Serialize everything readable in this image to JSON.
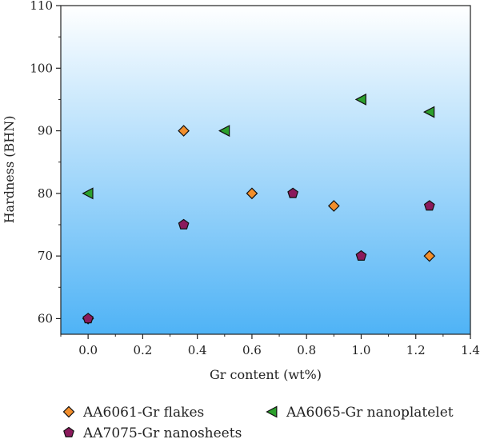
{
  "chart_data": {
    "type": "scatter",
    "xlabel": "Gr content (wt%)",
    "ylabel": "Hardness (BHN)",
    "xlim": [
      -0.1,
      1.4
    ],
    "ylim": [
      57.5,
      110
    ],
    "x_ticks": [
      0.0,
      0.2,
      0.4,
      0.6,
      0.8,
      1.0,
      1.2,
      1.4
    ],
    "x_tick_labels": [
      "0.0",
      "0.2",
      "0.4",
      "0.6",
      "0.8",
      "1.0",
      "1.2",
      "1.4"
    ],
    "y_ticks": [
      60,
      70,
      80,
      90,
      100,
      110
    ],
    "y_tick_labels": [
      "60",
      "70",
      "80",
      "90",
      "100",
      "110"
    ],
    "background": "vertical gradient white to light blue",
    "legend_position": "bottom",
    "series": [
      {
        "name": "AA6061-Gr flakes",
        "marker": "diamond",
        "color": "#f28e2b",
        "x": [
          0.0,
          0.35,
          0.6,
          0.9,
          1.25
        ],
        "y": [
          60,
          90,
          80,
          78,
          70
        ]
      },
      {
        "name": "AA6065-Gr nanoplatelet",
        "marker": "triangle-left",
        "color": "#2ca02c",
        "x": [
          0.0,
          0.5,
          1.0,
          1.25
        ],
        "y": [
          80,
          90,
          95,
          93
        ]
      },
      {
        "name": "AA7075-Gr nanosheets",
        "marker": "pentagon",
        "color": "#8b1a5c",
        "x": [
          0.0,
          0.35,
          0.75,
          1.0,
          1.25
        ],
        "y": [
          60,
          75,
          80,
          70,
          78
        ]
      }
    ]
  }
}
